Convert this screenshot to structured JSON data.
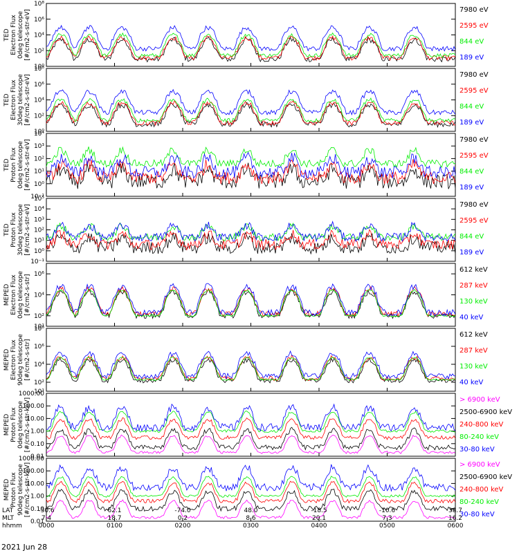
{
  "chart_data": [
    {
      "type": "line",
      "ylabel": [
        "TED",
        "Electron Flux",
        "0deg telescope",
        "[#/cm2-s-str-eV]"
      ],
      "yscale": "log",
      "ylim": [
        1,
        100000000
      ],
      "yticks": [
        {
          "v": 1,
          "t": "10⁰"
        },
        {
          "v": 100,
          "t": "10²"
        },
        {
          "v": 10000,
          "t": "10⁴"
        },
        {
          "v": 1000000,
          "t": "10⁶"
        },
        {
          "v": 100000000,
          "t": "10⁸"
        }
      ],
      "series": [
        {
          "name": "7980 eV",
          "color": "#000000",
          "base": 8,
          "noise": 0.35
        },
        {
          "name": "2595 eV",
          "color": "#ff0000",
          "base": 12,
          "noise": 0.3
        },
        {
          "name": "844 eV",
          "color": "#00ee00",
          "base": 25,
          "noise": 0.25
        },
        {
          "name": "189 eV",
          "color": "#0000ff",
          "base": 180,
          "noise": 0.3
        }
      ]
    },
    {
      "type": "line",
      "ylabel": [
        "TED",
        "Electron Flux",
        "30deg telescope",
        "[#/cm2-s-str-eV]"
      ],
      "yscale": "log",
      "ylim": [
        1,
        100000000
      ],
      "yticks": [
        {
          "v": 1,
          "t": "10⁰"
        },
        {
          "v": 100,
          "t": "10²"
        },
        {
          "v": 10000,
          "t": "10⁴"
        },
        {
          "v": 1000000,
          "t": "10⁶"
        },
        {
          "v": 100000000,
          "t": "10⁸"
        }
      ],
      "series": [
        {
          "name": "7980 eV",
          "color": "#000000",
          "base": 8,
          "noise": 0.35
        },
        {
          "name": "2595 eV",
          "color": "#ff0000",
          "base": 12,
          "noise": 0.3
        },
        {
          "name": "844 eV",
          "color": "#00ee00",
          "base": 25,
          "noise": 0.25
        },
        {
          "name": "189 eV",
          "color": "#0000ff",
          "base": 250,
          "noise": 0.3
        }
      ]
    },
    {
      "type": "line",
      "ylabel": [
        "TED",
        "Proton Flux",
        "0deg telescope",
        "[#/cm2-s-str-eV]"
      ],
      "yscale": "log",
      "ylim": [
        0.1,
        10000
      ],
      "yticks": [
        {
          "v": 0.1,
          "t": "10⁻¹"
        },
        {
          "v": 1,
          "t": "10⁰"
        },
        {
          "v": 10,
          "t": "10¹"
        },
        {
          "v": 100,
          "t": "10²"
        },
        {
          "v": 1000,
          "t": "10³"
        },
        {
          "v": 10000,
          "t": "10⁴"
        }
      ],
      "series": [
        {
          "name": "7980 eV",
          "color": "#000000",
          "base": 1.5,
          "noise": 0.6
        },
        {
          "name": "2595 eV",
          "color": "#ff0000",
          "base": 3,
          "noise": 0.5
        },
        {
          "name": "844 eV",
          "color": "#00ee00",
          "base": 40,
          "noise": 0.3
        },
        {
          "name": "189 eV",
          "color": "#0000ff",
          "base": 8,
          "noise": 0.5
        }
      ]
    },
    {
      "type": "line",
      "ylabel": [
        "TED",
        "Proton Flux",
        "30deg telescope",
        "[#/cm2-s-str-eV]"
      ],
      "yscale": "log",
      "ylim": [
        0.1,
        100000
      ],
      "yticks": [
        {
          "v": 0.1,
          "t": "10⁻¹"
        },
        {
          "v": 1,
          "t": "10⁰"
        },
        {
          "v": 10,
          "t": "10¹"
        },
        {
          "v": 100,
          "t": "10²"
        },
        {
          "v": 1000,
          "t": "10³"
        },
        {
          "v": 10000,
          "t": "10⁴"
        },
        {
          "v": 100000,
          "t": "10⁵"
        }
      ],
      "series": [
        {
          "name": "7980 eV",
          "color": "#000000",
          "base": 2,
          "noise": 0.6
        },
        {
          "name": "2595 eV",
          "color": "#ff0000",
          "base": 4,
          "noise": 0.5
        },
        {
          "name": "844 eV",
          "color": "#00ee00",
          "base": 20,
          "noise": 0.35
        },
        {
          "name": "189 eV",
          "color": "#0000ff",
          "base": 20,
          "noise": 0.4
        }
      ]
    },
    {
      "type": "line",
      "ylabel": [
        "MEPED",
        "Electron Flux",
        "0deg telescope",
        "[#/cm2-s-str]"
      ],
      "yscale": "log",
      "ylim": [
        10,
        10000000
      ],
      "yticks": [
        {
          "v": 10,
          "t": "10¹"
        },
        {
          "v": 100,
          "t": "10²"
        },
        {
          "v": 10000,
          "t": "10⁴"
        },
        {
          "v": 1000000,
          "t": "10⁶"
        }
      ],
      "series": [
        {
          "name": "612 keV",
          "color": "#000000",
          "base": 100,
          "noise": 0.25
        },
        {
          "name": "287 keV",
          "color": "#ff0000",
          "base": 150,
          "noise": 0.25
        },
        {
          "name": "130 keV",
          "color": "#00ee00",
          "base": 100,
          "noise": 0.1
        },
        {
          "name": "40 keV",
          "color": "#0000ff",
          "base": 200,
          "noise": 0.3
        }
      ]
    },
    {
      "type": "line",
      "ylabel": [
        "MEPED",
        "Electron Flux",
        "90deg telescope",
        "[#/cm2-s-str]"
      ],
      "yscale": "log",
      "ylim": [
        10,
        100000000
      ],
      "yticks": [
        {
          "v": 10,
          "t": "10¹"
        },
        {
          "v": 100,
          "t": "10²"
        },
        {
          "v": 10000,
          "t": "10⁴"
        },
        {
          "v": 1000000,
          "t": "10⁶"
        },
        {
          "v": 100000000,
          "t": "10⁸"
        }
      ],
      "series": [
        {
          "name": "612 keV",
          "color": "#000000",
          "base": 150,
          "noise": 0.25
        },
        {
          "name": "287 keV",
          "color": "#ff0000",
          "base": 250,
          "noise": 0.25
        },
        {
          "name": "130 keV",
          "color": "#00ee00",
          "base": 200,
          "noise": 0.1
        },
        {
          "name": "40 keV",
          "color": "#0000ff",
          "base": 500,
          "noise": 0.3
        }
      ]
    },
    {
      "type": "line",
      "ylabel": [
        "MEPED",
        "Proton Flux",
        "0deg telescope",
        "[#/cm2-s-str-keV]"
      ],
      "yscale": "log",
      "ylim": [
        0.01,
        1000
      ],
      "yticks": [
        {
          "v": 0.01,
          "t": "0.01"
        },
        {
          "v": 0.1,
          "t": "0.10"
        },
        {
          "v": 1,
          "t": "1.00"
        },
        {
          "v": 10,
          "t": "10.00"
        },
        {
          "v": 100,
          "t": "100.00"
        },
        {
          "v": 1000,
          "t": "1000.00"
        }
      ],
      "series": [
        {
          "name": "> 6900 keV",
          "color": "#ff00ff",
          "base": 0.02,
          "noise": 0.1
        },
        {
          "name": "2500-6900 keV",
          "color": "#000000",
          "base": 0.05,
          "noise": 0.2
        },
        {
          "name": "240-800 keV",
          "color": "#ff0000",
          "base": 0.3,
          "noise": 0.15
        },
        {
          "name": "80-240 keV",
          "color": "#00ee00",
          "base": 1,
          "noise": 0.1
        },
        {
          "name": "30-80 keV",
          "color": "#0000ff",
          "base": 2,
          "noise": 0.3
        }
      ]
    },
    {
      "type": "line",
      "ylabel": [
        "MEPED",
        "Proton Flux",
        "90deg telescope",
        "[#/cm2-s-str-keV]"
      ],
      "yscale": "log",
      "ylim": [
        0.01,
        1000
      ],
      "yticks": [
        {
          "v": 0.01,
          "t": "0.01"
        },
        {
          "v": 0.1,
          "t": "0.10"
        },
        {
          "v": 1,
          "t": "1.00"
        },
        {
          "v": 10,
          "t": "10.00"
        },
        {
          "v": 100,
          "t": "100.00"
        },
        {
          "v": 1000,
          "t": "1000.00"
        }
      ],
      "series": [
        {
          "name": "> 6900 keV",
          "color": "#ff00ff",
          "base": 0.02,
          "noise": 0.1
        },
        {
          "name": "2500-6900 keV",
          "color": "#000000",
          "base": 0.1,
          "noise": 0.2
        },
        {
          "name": "240-800 keV",
          "color": "#ff0000",
          "base": 0.4,
          "noise": 0.15
        },
        {
          "name": "80-240 keV",
          "color": "#00ee00",
          "base": 1,
          "noise": 0.1
        },
        {
          "name": "30-80 keV",
          "color": "#0000ff",
          "base": 5,
          "noise": 0.3
        }
      ]
    }
  ],
  "xaxis": {
    "xlim": [
      "0000",
      "0600"
    ],
    "row_labels": [
      "LAT",
      "MLT",
      "hhmm"
    ],
    "ticks": [
      {
        "lat": "-30.6",
        "mlt": "7.4",
        "hhmm": "0000"
      },
      {
        "lat": "62.1",
        "mlt": "18.7",
        "hhmm": "0100"
      },
      {
        "lat": "-74.0",
        "mlt": "0.2",
        "hhmm": "0200"
      },
      {
        "lat": "48.0",
        "mlt": "8.6",
        "hhmm": "0300"
      },
      {
        "lat": "-18.5",
        "mlt": "20.1",
        "hhmm": "0400"
      },
      {
        "lat": "-10.6",
        "mlt": "7.3",
        "hhmm": "0500"
      },
      {
        "lat": "38.7",
        "mlt": "16.2",
        "hhmm": "0600"
      }
    ],
    "date": "2021 Jun 28"
  }
}
